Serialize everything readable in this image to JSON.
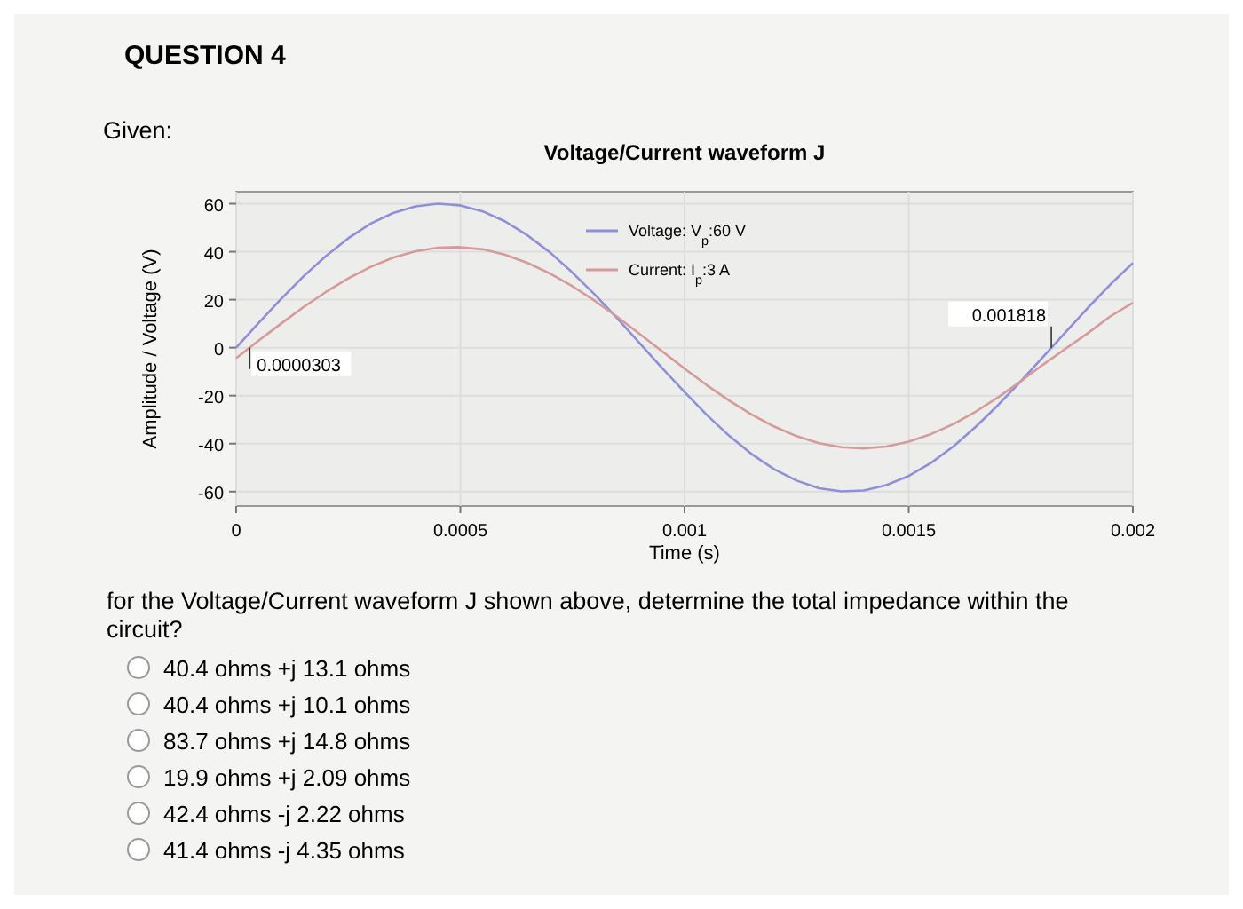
{
  "chart_data": {
    "type": "line",
    "title": "Voltage/Current waveform J",
    "xlabel": "Time (s)",
    "ylabel": "Amplitude / Voltage (V)",
    "x": [
      0,
      5e-05,
      0.0001,
      0.00015,
      0.0002,
      0.00025,
      0.0003,
      0.00035,
      0.0004,
      0.00045,
      0.0005,
      0.00055,
      0.0006,
      0.00065,
      0.0007,
      0.00075,
      0.0008,
      0.00085,
      0.0009,
      0.00095,
      0.001,
      0.00105,
      0.0011,
      0.00115,
      0.0012,
      0.00125,
      0.0013,
      0.00135,
      0.0014,
      0.00145,
      0.0015,
      0.00155,
      0.0016,
      0.00165,
      0.0017,
      0.00175,
      0.0018,
      0.00185,
      0.0019,
      0.00195,
      0.002
    ],
    "series": [
      {
        "name": "Voltage: V$_{p}$:60 V",
        "color": "#8f8fd8",
        "values": [
          0,
          10.3,
          20.3,
          29.7,
          38.2,
          45.6,
          51.7,
          56.1,
          58.9,
          60,
          59.3,
          56.8,
          52.6,
          46.8,
          39.7,
          31.3,
          22.1,
          12.2,
          1.9,
          -8.5,
          -18.5,
          -28.1,
          -36.8,
          -44.4,
          -50.7,
          -55.4,
          -58.6,
          -59.9,
          -59.5,
          -57.3,
          -53.5,
          -48,
          -41.1,
          -32.9,
          -23.8,
          -14,
          -3.8,
          6.5,
          16.7,
          26.4,
          35.3
        ]
      },
      {
        "name": "Current: I$_{p}$:3 A",
        "color": "#d59a9a",
        "values": [
          -4.4,
          2.9,
          10,
          16.9,
          23.2,
          28.9,
          33.7,
          37.5,
          40.2,
          41.7,
          41.9,
          41,
          38.7,
          35.3,
          30.9,
          25.6,
          19.5,
          12.8,
          5.7,
          -1.5,
          -8.7,
          -15.7,
          -22.1,
          -27.9,
          -32.9,
          -36.9,
          -39.8,
          -41.5,
          -42,
          -41.2,
          -39.2,
          -36,
          -31.8,
          -26.6,
          -20.6,
          -14,
          -7,
          -0.4,
          6.1,
          13.1,
          18.7
        ]
      }
    ],
    "xlim": [
      0,
      0.002
    ],
    "xticks": [
      0,
      0.0005,
      0.001,
      0.0015,
      0.002
    ],
    "ylim": [
      -66,
      65
    ],
    "yticks": [
      -60,
      -40,
      -20,
      0,
      20,
      40,
      60
    ],
    "grid": true,
    "legend": "top",
    "marker": "none",
    "line_style": "solid",
    "annotations": [
      "QUESTION 4",
      "Given:",
      {
        "text": "0.0000303",
        "x": 3.03e-05,
        "y": 0
      },
      {
        "text": "0.001818",
        "x": 0.001818,
        "y": 0
      },
      "for the Voltage/Current waveform J shown above, determine the total impedance within the circuit?",
      "40.4 ohms +j 13.1 ohms",
      "40.4 ohms +j 10.1 ohms",
      "83.7 ohms +j 14.8 ohms",
      "19.9 ohms +j 2.09 ohms",
      "42.4 ohms -j 2.22 ohms",
      "41.4 ohms -j 4.35 ohms"
    ]
  }
}
